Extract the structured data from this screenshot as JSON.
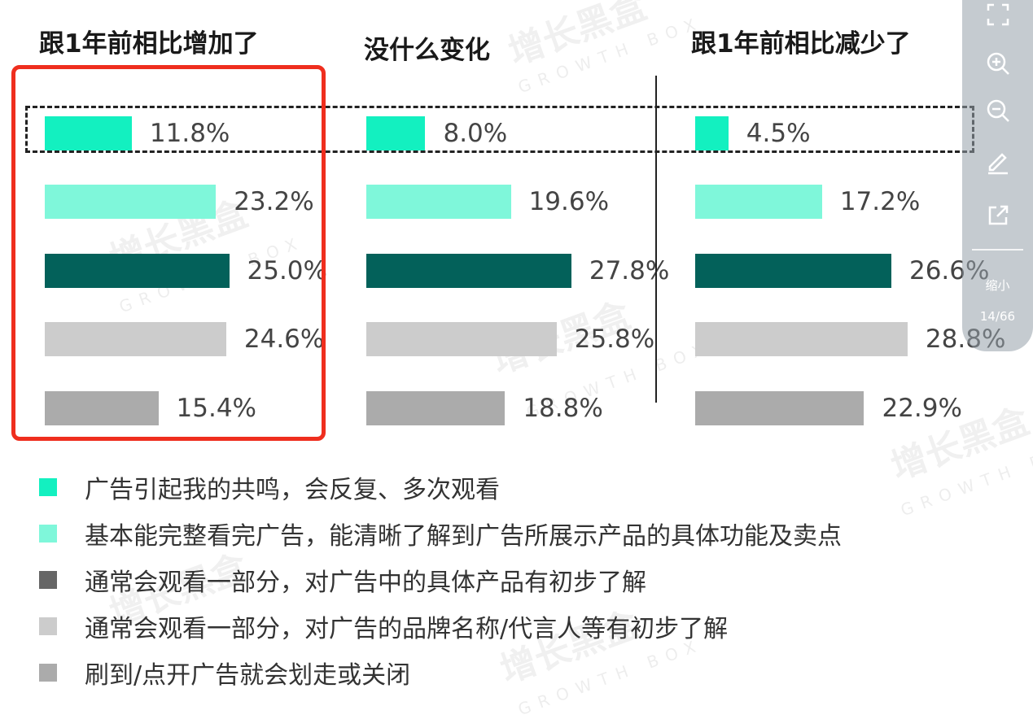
{
  "chart_data": {
    "type": "bar",
    "orientation": "horizontal",
    "panels": [
      "跟1年前相比增加了",
      "没什么变化",
      "跟1年前相比减少了"
    ],
    "categories": [
      "广告引起我的共鸣，会反复、多次观看",
      "基本能完整看完广告，能清晰了解到广告所展示产品的具体功能及卖点",
      "通常会观看一部分，对广告中的具体产品有初步了解",
      "通常会观看一部分，对广告的品牌名称/代言人等有初步了解",
      "刷到/点开广告就会划走或关闭"
    ],
    "series": [
      {
        "values": [
          11.8,
          23.2,
          25.0,
          24.6,
          15.4
        ],
        "labels": [
          "11.8%",
          "23.2%",
          "25.0%",
          "24.6%",
          "15.4%"
        ]
      },
      {
        "values": [
          8.0,
          19.6,
          27.8,
          25.8,
          18.8
        ],
        "labels": [
          "8.0%",
          "19.6%",
          "27.8%",
          "25.8%",
          "18.8%"
        ]
      },
      {
        "values": [
          4.5,
          17.2,
          26.6,
          28.8,
          22.9
        ],
        "labels": [
          "4.5%",
          "17.2%",
          "26.6%",
          "28.8%",
          "22.9%"
        ]
      }
    ],
    "colors": [
      "#13f0c0",
      "#7ff7da",
      "#03615a",
      "#cccccc",
      "#ababab"
    ],
    "legend_colors": [
      "#13f0c0",
      "#7ff7da",
      "#666666",
      "#cccccc",
      "#ababab"
    ],
    "legend_position": "bottom",
    "grid": false,
    "xlim": [
      0,
      30
    ]
  },
  "highlight_colors": {
    "frame": "#ef2e1e",
    "dashed_box": "#222222"
  },
  "watermark": {
    "text": "增长黑盒",
    "sub": "GROWTH BOX"
  },
  "toolbar": {
    "icons": [
      "fullscreen-icon",
      "zoom-in-icon",
      "zoom-out-icon",
      "pen-icon",
      "share-icon"
    ],
    "shrink_label": "缩小",
    "page_indicator": "14/66"
  }
}
